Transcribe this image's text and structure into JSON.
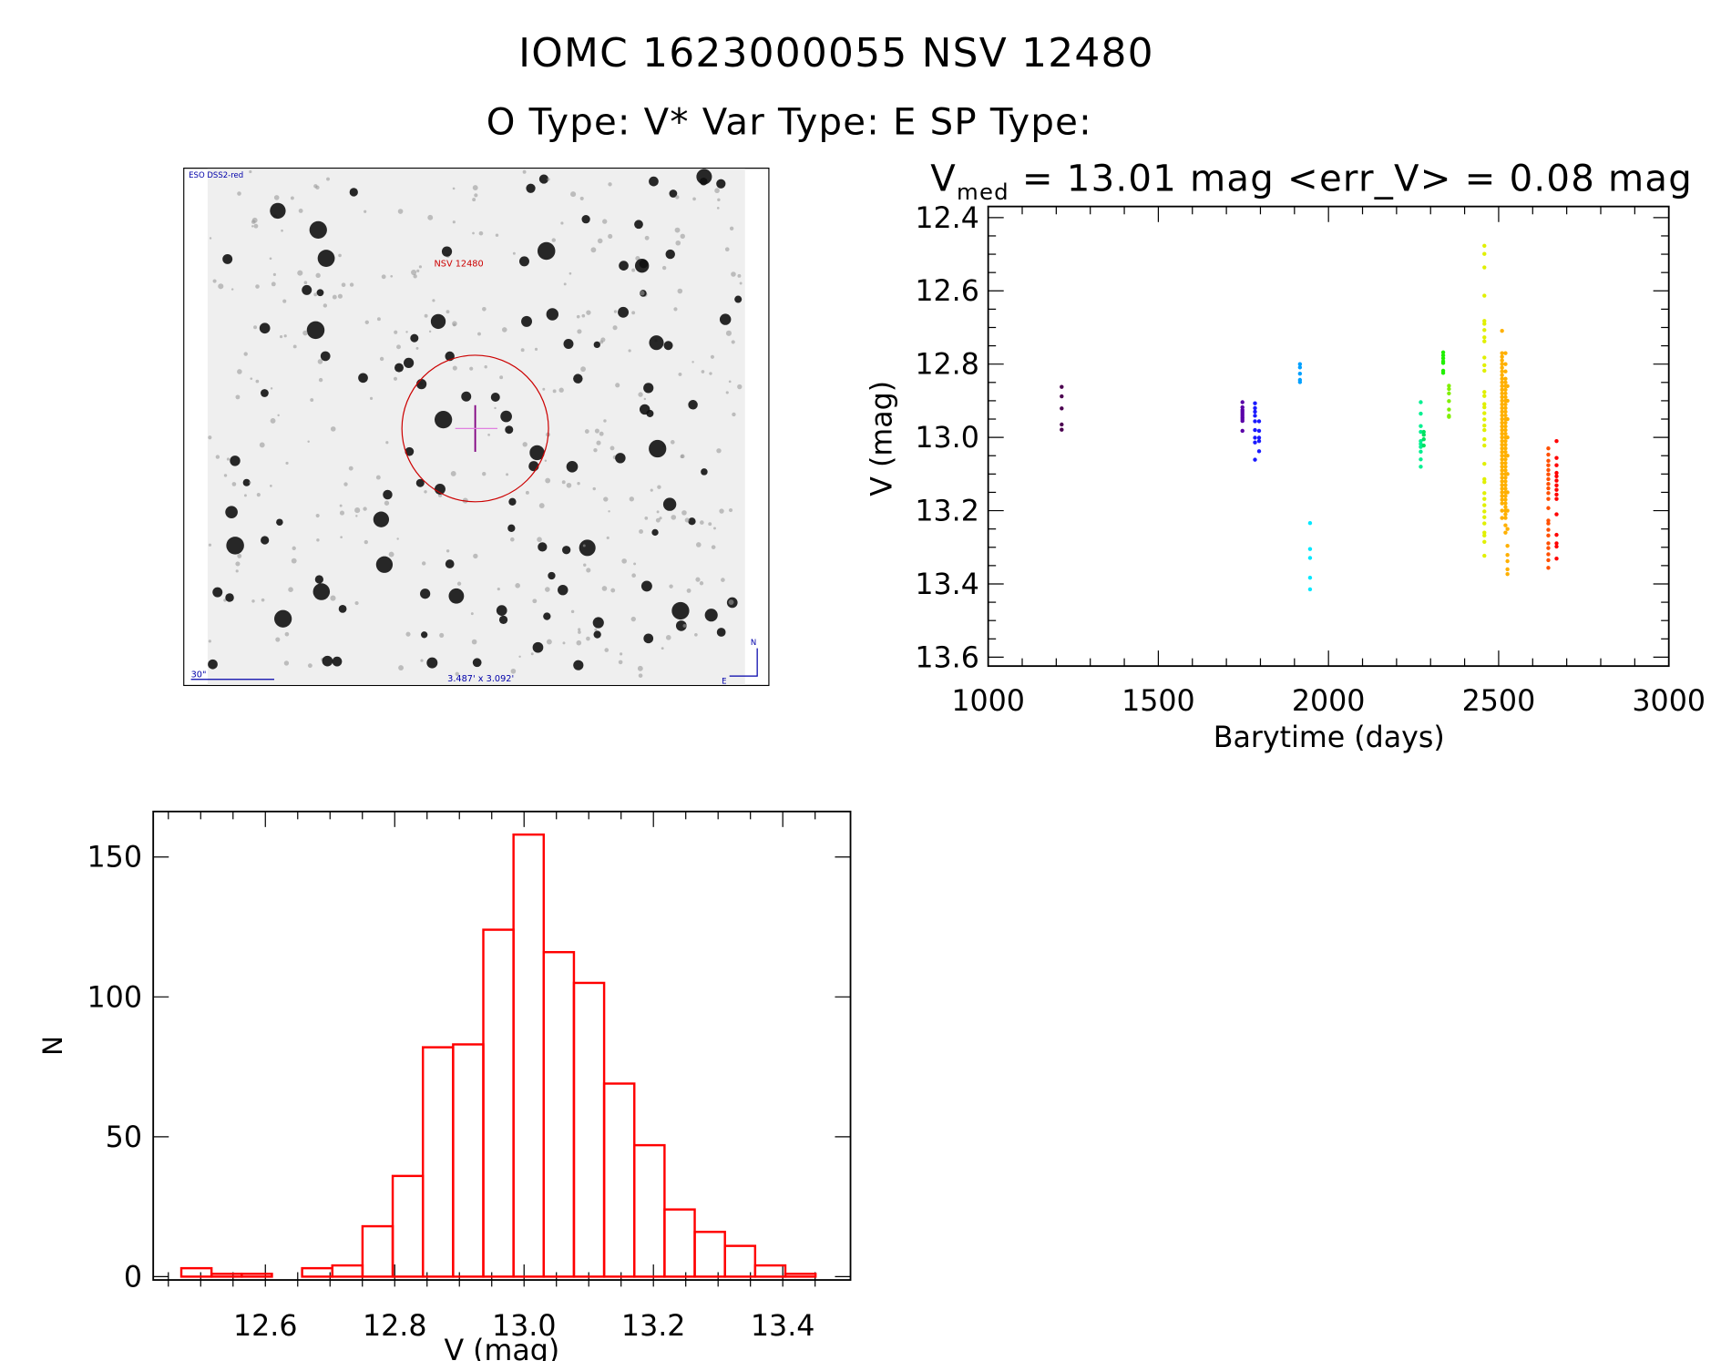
{
  "header": {
    "title": "IOMC 1623000055    NSV 12480",
    "subtitle": "O Type: V*   Var Type: E   SP Type:",
    "vmed_prefix": "V",
    "vmed_sub": "med",
    "vmed_rest": " = 13.01 mag <err_V> = 0.08 mag"
  },
  "image": {
    "survey_label": "ESO DSS2-red",
    "target_label": "NSV 12480",
    "scale_label": "30\"",
    "fov_label": "3.487' x 3.092'",
    "north_label": "N",
    "east_label": "E",
    "colors": {
      "target": "#cc0000",
      "label": "#0000aa",
      "cross": "#800080"
    }
  },
  "chart_data": [
    {
      "type": "scatter",
      "title": "",
      "xlabel": "Barytime (days)",
      "ylabel": "V (mag)",
      "xlim": [
        1000,
        3000
      ],
      "ylim": [
        13.6,
        12.4
      ],
      "y_inverted": true,
      "xticks": [
        "1000",
        "1500",
        "2000",
        "2500",
        "3000"
      ],
      "yticks": [
        "12.4",
        "12.6",
        "12.8",
        "13.0",
        "13.2",
        "13.4",
        "13.6"
      ],
      "series": [
        {
          "x": 1216,
          "color": "#4b0050",
          "mags": [
            12.862,
            12.888,
            12.921,
            12.965,
            12.979
          ]
        },
        {
          "x": 1747,
          "color": "#5a00a8",
          "mags": [
            12.904,
            12.918,
            12.925,
            12.93,
            12.935,
            12.94,
            12.945,
            12.95,
            12.955,
            12.982
          ]
        },
        {
          "x": 1784,
          "color": "#1a1aff",
          "mags": [
            12.907,
            12.92,
            12.93,
            12.941,
            12.956,
            12.98,
            13.001,
            13.014,
            13.061
          ]
        },
        {
          "x": 1796,
          "color": "#1a1aff",
          "mags": [
            12.956,
            12.982,
            13.001,
            13.01,
            13.038
          ]
        },
        {
          "x": 1916,
          "color": "#00a0ff",
          "mags": [
            12.8,
            12.809,
            12.826,
            12.843,
            12.849
          ]
        },
        {
          "x": 1946,
          "color": "#00e8ff",
          "mags": [
            13.234,
            13.305,
            13.329,
            13.383,
            13.415
          ]
        },
        {
          "x": 2271,
          "color": "#00f090",
          "mags": [
            12.904,
            12.935,
            12.969,
            12.985,
            13.01,
            13.018,
            13.026,
            13.039,
            13.06,
            13.08
          ]
        },
        {
          "x": 2280,
          "color": "#00e060",
          "mags": [
            12.985,
            12.993,
            13.005,
            13.022
          ]
        },
        {
          "x": 2337,
          "color": "#20f000",
          "mags": [
            12.768,
            12.776,
            12.784,
            12.792,
            12.797,
            12.818,
            12.824
          ]
        },
        {
          "x": 2354,
          "color": "#80f000",
          "mags": [
            12.859,
            12.868,
            12.88,
            12.901,
            12.924,
            12.941,
            12.944
          ]
        },
        {
          "x": 2458,
          "color": "#e0f000",
          "mags": [
            12.477,
            12.499,
            12.536,
            12.613,
            12.682,
            12.69,
            12.707,
            12.727,
            12.738,
            12.782,
            12.803,
            12.818,
            12.876,
            12.887,
            12.909,
            12.918,
            12.934,
            12.951,
            12.968,
            12.98,
            13.005,
            13.022,
            13.072,
            13.114,
            13.122,
            13.152,
            13.168,
            13.185,
            13.202,
            13.218,
            13.235,
            13.26,
            13.268,
            13.285,
            13.323
          ]
        },
        {
          "x": 2510,
          "color": "#ffb000",
          "mags": [
            12.709,
            12.77,
            12.78,
            12.79,
            12.8,
            12.81,
            12.82,
            12.83,
            12.84,
            12.85,
            12.86,
            12.87,
            12.88,
            12.89,
            12.9,
            12.91,
            12.92,
            12.93,
            12.94,
            12.95,
            12.96,
            12.97,
            12.98,
            12.99,
            13.0,
            13.01,
            13.02,
            13.03,
            13.04,
            13.05,
            13.06,
            13.07,
            13.08,
            13.09,
            13.1,
            13.11,
            13.12,
            13.13,
            13.14,
            13.15,
            13.16,
            13.17,
            13.18,
            13.2,
            13.22
          ]
        },
        {
          "x": 2520,
          "color": "#ffb000",
          "mags": [
            12.77,
            12.8,
            12.82,
            12.84,
            12.85,
            12.86,
            12.87,
            12.88,
            12.89,
            12.9,
            12.91,
            12.92,
            12.93,
            12.94,
            12.95,
            12.96,
            12.97,
            12.98,
            12.99,
            13.0,
            13.01,
            13.02,
            13.03,
            13.04,
            13.05,
            13.06,
            13.07,
            13.08,
            13.09,
            13.1,
            13.11,
            13.12,
            13.13,
            13.14,
            13.15,
            13.16,
            13.17,
            13.18,
            13.19,
            13.2,
            13.21,
            13.22,
            13.24,
            13.26
          ]
        },
        {
          "x": 2526,
          "color": "#ffb000",
          "mags": [
            12.86,
            12.9,
            12.95,
            13.0,
            13.05,
            13.1,
            13.15,
            13.2,
            13.25,
            13.296,
            13.321,
            13.338,
            13.36,
            13.373
          ]
        },
        {
          "x": 2646,
          "color": "#ff5000",
          "mags": [
            13.03,
            13.047,
            13.064,
            13.076,
            13.089,
            13.101,
            13.114,
            13.127,
            13.139,
            13.152,
            13.168,
            13.193,
            13.227,
            13.235,
            13.252,
            13.268,
            13.289,
            13.302,
            13.319,
            13.335,
            13.356
          ]
        },
        {
          "x": 2670,
          "color": "#ff0000",
          "mags": [
            13.01,
            13.056,
            13.076,
            13.097,
            13.106,
            13.118,
            13.131,
            13.143,
            13.156,
            13.168,
            13.21,
            13.266,
            13.289,
            13.298,
            13.331
          ]
        }
      ]
    },
    {
      "type": "bar",
      "title": "",
      "xlabel": "V (mag)",
      "ylabel": "N",
      "xlim": [
        12.45,
        13.5
      ],
      "ylim": [
        0,
        165
      ],
      "xticks": [
        "12.6",
        "12.8",
        "13.0",
        "13.2",
        "13.4"
      ],
      "yticks": [
        "0",
        "50",
        "100",
        "150"
      ],
      "bin_start": 12.47,
      "bin_width": 0.0467,
      "values": [
        3,
        1,
        1,
        0,
        3,
        4,
        18,
        36,
        82,
        83,
        124,
        158,
        116,
        105,
        69,
        47,
        24,
        16,
        11,
        4,
        1
      ],
      "color": "#ff0000"
    }
  ]
}
